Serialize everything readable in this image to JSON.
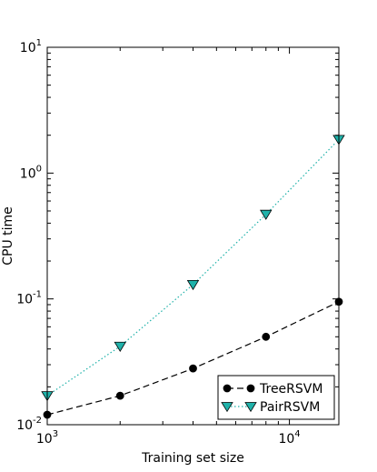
{
  "chart_data": {
    "type": "line",
    "xlabel": "Training set size",
    "ylabel": "CPU time",
    "xscale": "log",
    "yscale": "log",
    "xlim": [
      1000,
      16000
    ],
    "ylim": [
      0.01,
      10
    ],
    "grid": false,
    "legend_position": "bottom-right",
    "x_ticks": [
      {
        "value": 1000,
        "base": "10",
        "exp": "3"
      },
      {
        "value": 10000,
        "base": "10",
        "exp": "4"
      }
    ],
    "y_ticks": [
      {
        "value": 0.01,
        "base": "10",
        "exp": "-2"
      },
      {
        "value": 0.1,
        "base": "10",
        "exp": "-1"
      },
      {
        "value": 1,
        "base": "10",
        "exp": "0"
      },
      {
        "value": 10,
        "base": "10",
        "exp": "1"
      }
    ],
    "series": [
      {
        "name": "TreeRSVM",
        "color": "#000000",
        "line_style": "dashed",
        "marker": "circle",
        "x": [
          1000,
          2000,
          4000,
          8000,
          16000
        ],
        "y": [
          0.012,
          0.017,
          0.028,
          0.05,
          0.095
        ]
      },
      {
        "name": "PairRSVM",
        "color": "#20b2aa",
        "line_style": "dotted",
        "marker": "triangle-down",
        "x": [
          1000,
          2000,
          4000,
          8000,
          16000
        ],
        "y": [
          0.017,
          0.042,
          0.13,
          0.47,
          1.85
        ]
      }
    ]
  }
}
